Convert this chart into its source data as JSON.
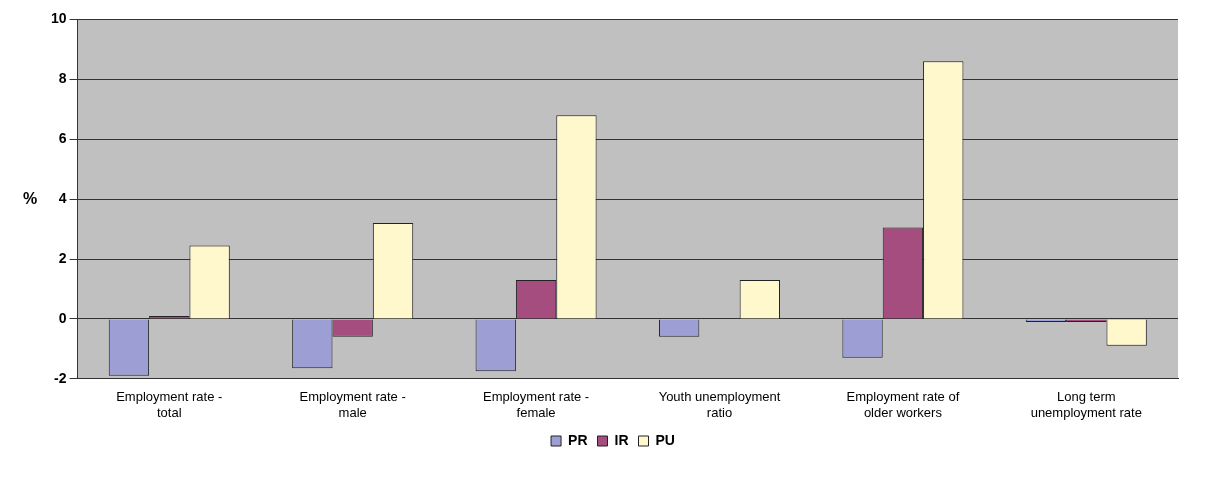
{
  "chart_data": {
    "type": "bar",
    "ylabel": "%",
    "categories": [
      "Employment rate - total",
      "Employment rate - male",
      "Employment rate - female",
      "Youth unemployment ratio",
      "Employment rate of older workers",
      "Long term unemployment rate"
    ],
    "series": [
      {
        "name": "PR",
        "color": "#9d9ed3",
        "values": [
          -1.9,
          -1.65,
          -1.75,
          -0.6,
          -1.3,
          -0.1
        ]
      },
      {
        "name": "IR",
        "color": "#a64d7f",
        "values": [
          0.1,
          -0.6,
          1.3,
          0,
          3.05,
          -0.1
        ]
      },
      {
        "name": "PU",
        "color": "#fff8cc",
        "values": [
          2.45,
          3.2,
          6.8,
          1.3,
          8.6,
          -0.9
        ]
      }
    ],
    "ylim": [
      -2,
      10
    ],
    "yticks": [
      -2,
      0,
      2,
      4,
      6,
      8,
      10
    ],
    "grid": "y",
    "legend": "bottom"
  }
}
